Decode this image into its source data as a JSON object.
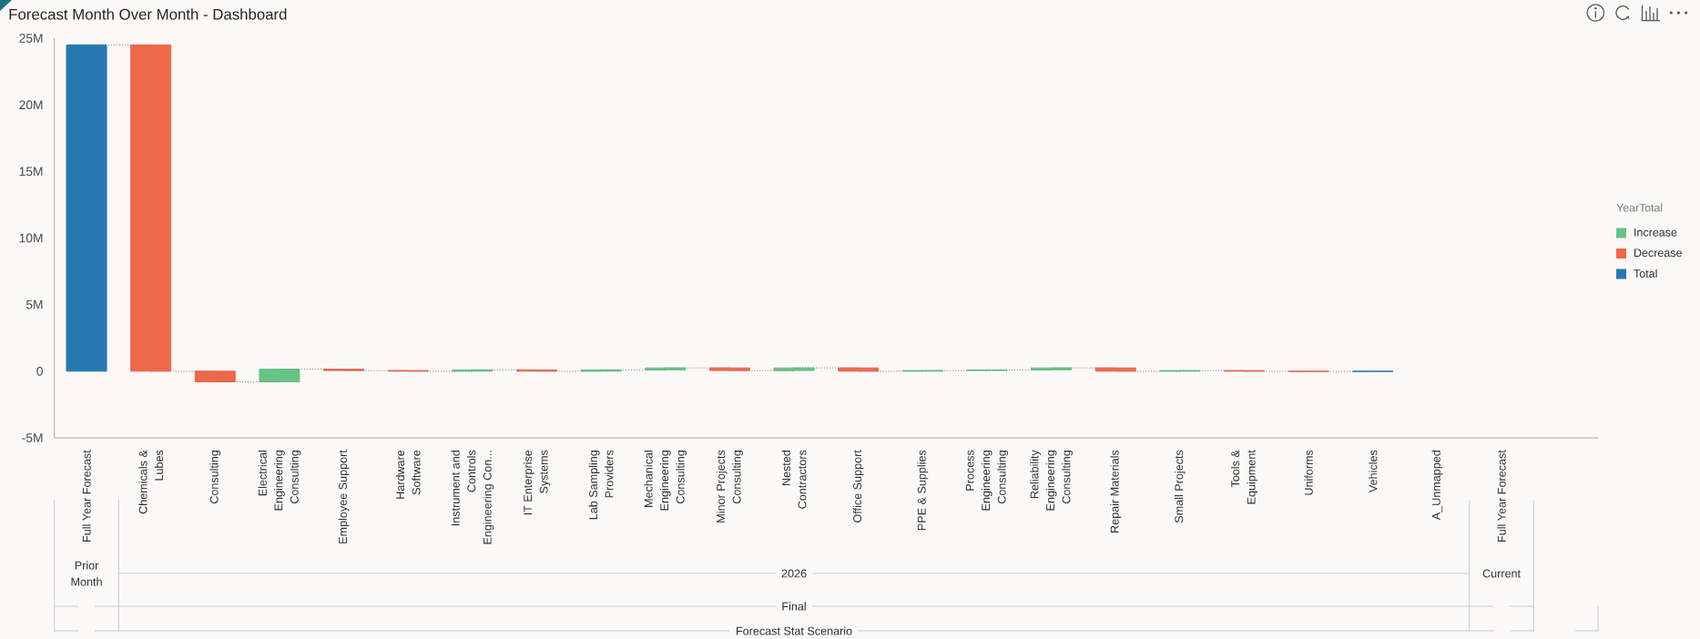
{
  "chart_data": {
    "type": "bar",
    "title": "Forecast Month Over Month - Dashboard",
    "categories": [
      "Full Year Forecast",
      "Chemicals & Lubes",
      "Consulting",
      "Electrical Engineering Consulting",
      "Employee Support",
      "Hardware Software",
      "Instrument and Controls Engineering Con...",
      "IT Enterprise Systems",
      "Lab Sampling Providers",
      "Mechanical Engineering Consulting",
      "Minor Projects Consulting",
      "Nested Contractors",
      "Office Support",
      "PPE & Supplies",
      "Process Engineering Consulting",
      "Reliability Engineering Consulting",
      "Repair Materials",
      "Small Projects",
      "Tools & Equipment",
      "Uniforms",
      "Vehicles",
      "A_Unmapped",
      "Full Year Forecast"
    ],
    "series": [
      {
        "name": "Increase",
        "color": "#66c285",
        "values": [
          null,
          null,
          null,
          950000,
          null,
          null,
          100000,
          null,
          100000,
          150000,
          null,
          200000,
          null,
          50000,
          50000,
          150000,
          null,
          50000,
          null,
          null,
          null,
          null,
          null
        ],
        "base": [
          null,
          null,
          null,
          -800000,
          null,
          null,
          0,
          null,
          0,
          100000,
          null,
          50000,
          null,
          0,
          50000,
          100000,
          null,
          0,
          null,
          null,
          null,
          null,
          null
        ]
      },
      {
        "name": "Decrease",
        "color": "#ee684a",
        "values": [
          null,
          -24500000,
          -800000,
          null,
          -100000,
          -50000,
          null,
          -100000,
          null,
          null,
          -200000,
          null,
          -250000,
          null,
          null,
          null,
          -250000,
          null,
          -50000,
          -20000,
          null,
          null,
          null
        ],
        "base": [
          null,
          24500000,
          0,
          null,
          150000,
          50000,
          null,
          100000,
          null,
          null,
          250000,
          null,
          250000,
          null,
          null,
          null,
          250000,
          null,
          50000,
          0,
          null,
          null,
          null
        ]
      },
      {
        "name": "Total",
        "color": "#2678b0",
        "values": [
          24500000,
          null,
          null,
          null,
          null,
          null,
          null,
          null,
          null,
          null,
          null,
          null,
          null,
          null,
          null,
          null,
          null,
          null,
          null,
          null,
          -20000,
          null,
          null
        ],
        "base": [
          0,
          null,
          null,
          null,
          null,
          null,
          null,
          null,
          null,
          null,
          null,
          null,
          null,
          null,
          null,
          null,
          null,
          null,
          null,
          null,
          0,
          null,
          null
        ]
      }
    ],
    "ylim": [
      -5000000,
      25000000
    ],
    "yticks": [
      {
        "value": -5000000,
        "label": "-5M"
      },
      0,
      {
        "value": 5000000,
        "label": "5M"
      },
      {
        "value": 10000000,
        "label": "10M"
      },
      {
        "value": 15000000,
        "label": "15M"
      },
      {
        "value": 20000000,
        "label": "20M"
      },
      {
        "value": 25000000,
        "label": "25M"
      }
    ],
    "legend": "right",
    "legend_title": "YearTotal",
    "annotations": [
      "Prior Month",
      "2026",
      "Current",
      "Final",
      "Forecast Stat Scenario"
    ]
  }
}
